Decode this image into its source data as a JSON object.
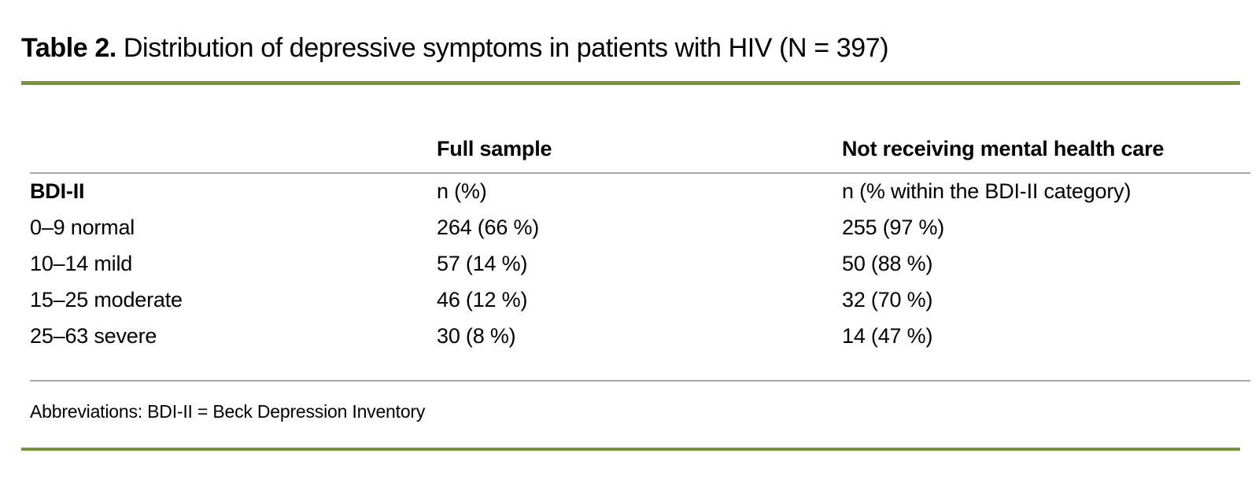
{
  "title": {
    "label": "Table 2.",
    "caption": "Distribution of depressive symptoms in patients with HIV (N = 397)"
  },
  "table": {
    "header": {
      "col1": "",
      "col2": "Full sample",
      "col3": "Not receiving mental health care"
    },
    "rows": [
      [
        "BDI-II",
        "n (%)",
        "n (% within the BDI-II category)"
      ],
      [
        "0–9 normal",
        "264 (66 %)",
        "255 (97 %)"
      ],
      [
        "10–14 mild",
        "57 (14 %)",
        "50 (88 %)"
      ],
      [
        "15–25 moderate",
        "46 (12 %)",
        "32 (70 %)"
      ],
      [
        "25–63 severe",
        "30 (8 %)",
        "14 (47 %)"
      ]
    ]
  },
  "footnote": "Abbreviations: BDI-II = Beck Depression Inventory",
  "colors": {
    "accent_rule": "#77933C",
    "divider_rule": "#A8A8A8"
  }
}
